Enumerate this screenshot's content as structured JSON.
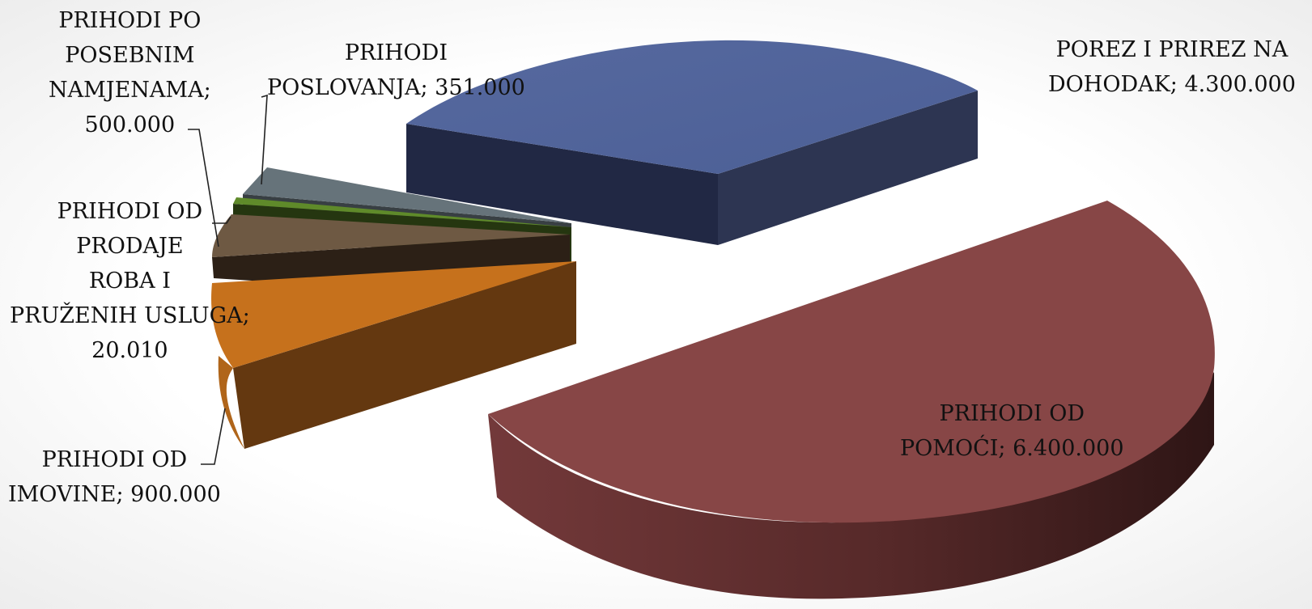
{
  "chart_data": {
    "type": "pie",
    "style": "3d-exploded",
    "title": "",
    "slices": [
      {
        "label": "POREZ I PRIREZ NA DOHODAK",
        "value": 4300000,
        "value_text": "4.300.000",
        "color": "#5265a0"
      },
      {
        "label": "PRIHODI OD POMOĆI",
        "value": 6400000,
        "value_text": "6.400.000",
        "color": "#874646"
      },
      {
        "label": "PRIHODI OD IMOVINE",
        "value": 900000,
        "value_text": "900.000",
        "color": "#c6711c"
      },
      {
        "label": "PRIHODI OD PRODAJE ROBA I PRUŽENIH USLUGA",
        "value": 20010,
        "value_text": "20.010",
        "color": "#4a6b20"
      },
      {
        "label": "PRIHODI PO POSEBNIM NAMJENAMA",
        "value": 500000,
        "value_text": "500.000",
        "color": "#6e5943"
      },
      {
        "label": "PRIHODI POSLOVANJA",
        "value": 351000,
        "value_text": "351.000",
        "color": "#66737a"
      }
    ]
  },
  "labels": {
    "porez": [
      "POREZ I PRIREZ NA",
      "DOHODAK; 4.300.000"
    ],
    "pomoci": [
      "PRIHODI OD",
      "POMOĆI; 6.400.000"
    ],
    "imovine": [
      "PRIHODI OD",
      "IMOVINE; 900.000"
    ],
    "prodaje": [
      "PRIHODI OD",
      "PRODAJE",
      "ROBA I",
      "PRUŽENIH USLUGA;",
      "20.010"
    ],
    "posebnim": [
      "PRIHODI PO",
      "POSEBNIM",
      "NAMJENAMA;",
      "500.000"
    ],
    "poslovanja": [
      "PRIHODI",
      "POSLOVANJA; 351.000"
    ]
  }
}
